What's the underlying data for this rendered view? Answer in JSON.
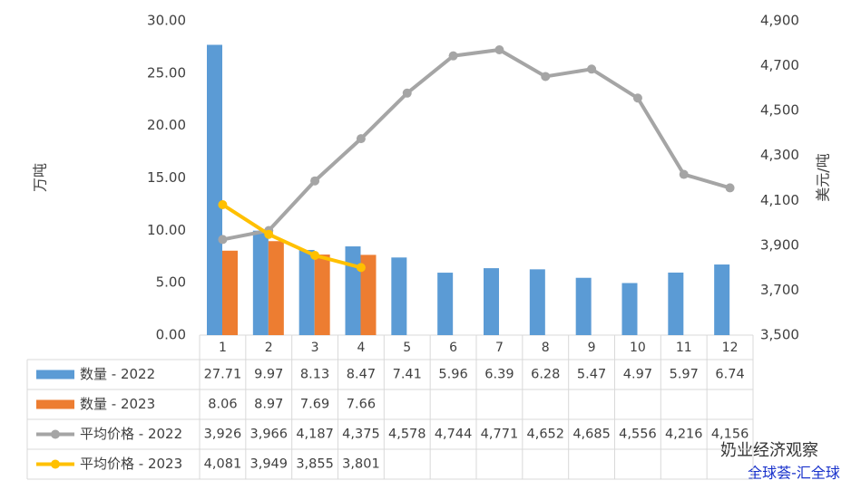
{
  "chart_data": {
    "type": "bar-line-table",
    "categories": [
      "1",
      "2",
      "3",
      "4",
      "5",
      "6",
      "7",
      "8",
      "9",
      "10",
      "11",
      "12"
    ],
    "y_label": "万吨",
    "y2_label": "美元/吨",
    "ylim": [
      0,
      30
    ],
    "yticks": [
      {
        "value": 0,
        "label": "0.00"
      },
      {
        "value": 5,
        "label": "5.00"
      },
      {
        "value": 10,
        "label": "10.00"
      },
      {
        "value": 15,
        "label": "15.00"
      },
      {
        "value": 20,
        "label": "20.00"
      },
      {
        "value": 25,
        "label": "25.00"
      },
      {
        "value": 30,
        "label": "30.00"
      }
    ],
    "y2lim": [
      3500,
      4900
    ],
    "y2ticks": [
      {
        "value": 3500,
        "label": "3,500"
      },
      {
        "value": 3700,
        "label": "3,700"
      },
      {
        "value": 3900,
        "label": "3,900"
      },
      {
        "value": 4100,
        "label": "4,100"
      },
      {
        "value": 4300,
        "label": "4,300"
      },
      {
        "value": 4500,
        "label": "4,500"
      },
      {
        "value": 4700,
        "label": "4,700"
      },
      {
        "value": 4900,
        "label": "4,900"
      }
    ],
    "series": [
      {
        "name": "数量 - 2022",
        "type": "bar",
        "color": "#5b9bd5",
        "values": [
          27.71,
          9.97,
          8.13,
          8.47,
          7.41,
          5.96,
          6.39,
          6.28,
          5.47,
          4.97,
          5.97,
          6.74
        ]
      },
      {
        "name": "数量 - 2023",
        "type": "bar",
        "color": "#ed7d31",
        "values": [
          8.06,
          8.97,
          7.69,
          7.66,
          null,
          null,
          null,
          null,
          null,
          null,
          null,
          null
        ]
      },
      {
        "name": "平均价格 - 2022",
        "type": "line",
        "axis": "y2",
        "color": "#a5a5a5",
        "values": [
          3926,
          3966,
          4187,
          4375,
          4578,
          4744,
          4771,
          4652,
          4685,
          4556,
          4216,
          4156
        ],
        "value_labels": [
          "3,926",
          "3,966",
          "4,187",
          "4,375",
          "4,578",
          "4,744",
          "4,771",
          "4,652",
          "4,685",
          "4,556",
          "4,216",
          "4,156"
        ]
      },
      {
        "name": "平均价格 - 2023",
        "type": "line",
        "axis": "y2",
        "color": "#ffc000",
        "values": [
          4081,
          3949,
          3855,
          3801,
          null,
          null,
          null,
          null,
          null,
          null,
          null,
          null
        ],
        "value_labels": [
          "4,081",
          "3,949",
          "3,855",
          "3,801",
          null,
          null,
          null,
          null,
          null,
          null,
          null,
          null
        ]
      }
    ],
    "annotations": [
      "奶业经济观察",
      "全球荟-汇全球"
    ]
  }
}
